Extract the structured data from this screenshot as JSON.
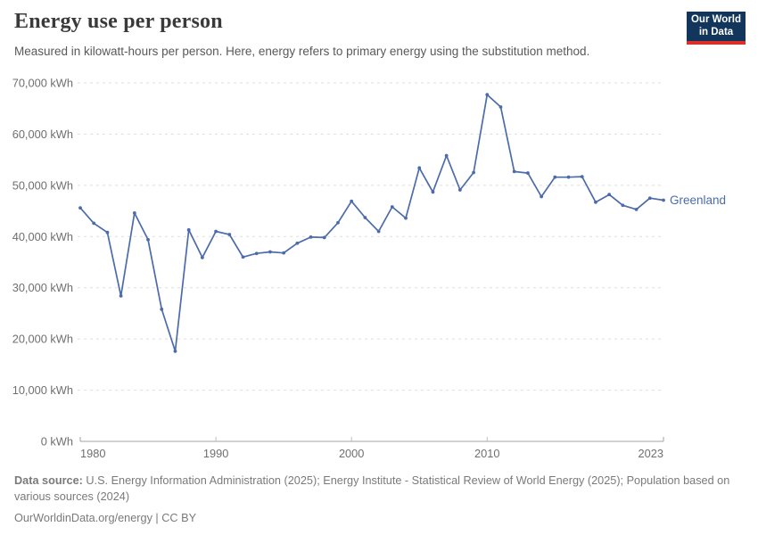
{
  "header": {
    "title": "Energy use per person",
    "subtitle": "Measured in kilowatt-hours per person. Here, energy refers to primary energy using the substitution method."
  },
  "logo": {
    "line1": "Our World",
    "line2": "in Data",
    "bg_color": "#12355c",
    "accent_color": "#dc2f28"
  },
  "footer": {
    "source_label": "Data source:",
    "source_text": " U.S. Energy Information Administration (2025); Energy Institute - Statistical Review of World Energy (2025); Population based on various sources (2024)",
    "attribution": "OurWorldinData.org/energy | CC BY"
  },
  "chart_data": {
    "type": "line",
    "title": "Energy use per person",
    "unit": "kWh",
    "xlabel": "",
    "ylabel": "",
    "xlim": [
      1980,
      2023
    ],
    "ylim": [
      0,
      70000
    ],
    "grid": "horizontal-dashed",
    "legend": "end-of-line-label",
    "x": [
      1980,
      1981,
      1982,
      1983,
      1984,
      1985,
      1986,
      1987,
      1988,
      1989,
      1990,
      1991,
      1992,
      1993,
      1994,
      1995,
      1996,
      1997,
      1998,
      1999,
      2000,
      2001,
      2002,
      2003,
      2004,
      2005,
      2006,
      2007,
      2008,
      2009,
      2010,
      2011,
      2012,
      2013,
      2014,
      2015,
      2016,
      2017,
      2018,
      2019,
      2020,
      2021,
      2022,
      2023
    ],
    "series": [
      {
        "name": "Greenland",
        "color": "#4c6bab",
        "values": [
          45600,
          42600,
          40800,
          28400,
          44600,
          39400,
          25800,
          17600,
          41300,
          35900,
          41000,
          40400,
          36000,
          36700,
          37000,
          36800,
          38700,
          39900,
          39800,
          42700,
          46900,
          43700,
          41000,
          45800,
          43600,
          53400,
          48700,
          55800,
          49100,
          52500,
          67700,
          65300,
          52700,
          52400,
          47800,
          51600,
          51600,
          51700,
          46700,
          48200,
          46100,
          45300,
          47500,
          47100
        ]
      }
    ],
    "yticks": [
      0,
      10000,
      20000,
      30000,
      40000,
      50000,
      60000,
      70000
    ],
    "ytick_labels": [
      "0 kWh",
      "10,000 kWh",
      "20,000 kWh",
      "30,000 kWh",
      "40,000 kWh",
      "50,000 kWh",
      "60,000 kWh",
      "70,000 kWh"
    ],
    "xticks": [
      1980,
      1990,
      2000,
      2010,
      2023
    ],
    "xtick_labels": [
      "1980",
      "1990",
      "2000",
      "2010",
      "2023"
    ]
  }
}
